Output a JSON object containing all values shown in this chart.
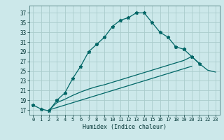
{
  "xlabel": "Humidex (Indice chaleur)",
  "bg_color": "#cce8ea",
  "grid_color": "#aacccc",
  "line_color": "#006666",
  "xlim": [
    -0.5,
    23.5
  ],
  "ylim": [
    16,
    38.5
  ],
  "xticks": [
    0,
    1,
    2,
    3,
    4,
    5,
    6,
    7,
    8,
    9,
    10,
    11,
    12,
    13,
    14,
    15,
    16,
    17,
    18,
    19,
    20,
    21,
    22,
    23
  ],
  "yticks": [
    17,
    19,
    21,
    23,
    25,
    27,
    29,
    31,
    33,
    35,
    37
  ],
  "line1_x": [
    0,
    1,
    2,
    3,
    4,
    5,
    6,
    7,
    8,
    9,
    10,
    11,
    12,
    13,
    14,
    15,
    16,
    17,
    18,
    19
  ],
  "line1_y": [
    18.0,
    17.2,
    16.8,
    19.0,
    20.5,
    23.5,
    26.0,
    29.0,
    30.5,
    32.0,
    34.2,
    35.5,
    36.0,
    37.0,
    37.0,
    35.0,
    33.0,
    32.0,
    30.0,
    29.5
  ],
  "line2_x": [
    19,
    20,
    21
  ],
  "line2_y": [
    29.5,
    28.0,
    26.5
  ],
  "line3_x": [
    2,
    3,
    4,
    5,
    6,
    7,
    8,
    9,
    10,
    11,
    12,
    13,
    14,
    15,
    16,
    17,
    18,
    19,
    20,
    21,
    22,
    23
  ],
  "line3_y": [
    17.0,
    18.5,
    19.2,
    20.0,
    20.7,
    21.3,
    21.8,
    22.2,
    22.7,
    23.2,
    23.7,
    24.2,
    24.7,
    25.2,
    25.7,
    26.2,
    26.7,
    27.2,
    28.0,
    26.5,
    25.2,
    24.8
  ],
  "line4_x": [
    2,
    3,
    4,
    5,
    6,
    7,
    8,
    9,
    10,
    11,
    12,
    13,
    14,
    15,
    16,
    17,
    18,
    19,
    20
  ],
  "line4_y": [
    17.0,
    17.5,
    18.0,
    18.5,
    19.0,
    19.5,
    20.0,
    20.5,
    21.0,
    21.5,
    22.0,
    22.5,
    23.0,
    23.5,
    24.0,
    24.5,
    25.0,
    25.5,
    26.0
  ]
}
